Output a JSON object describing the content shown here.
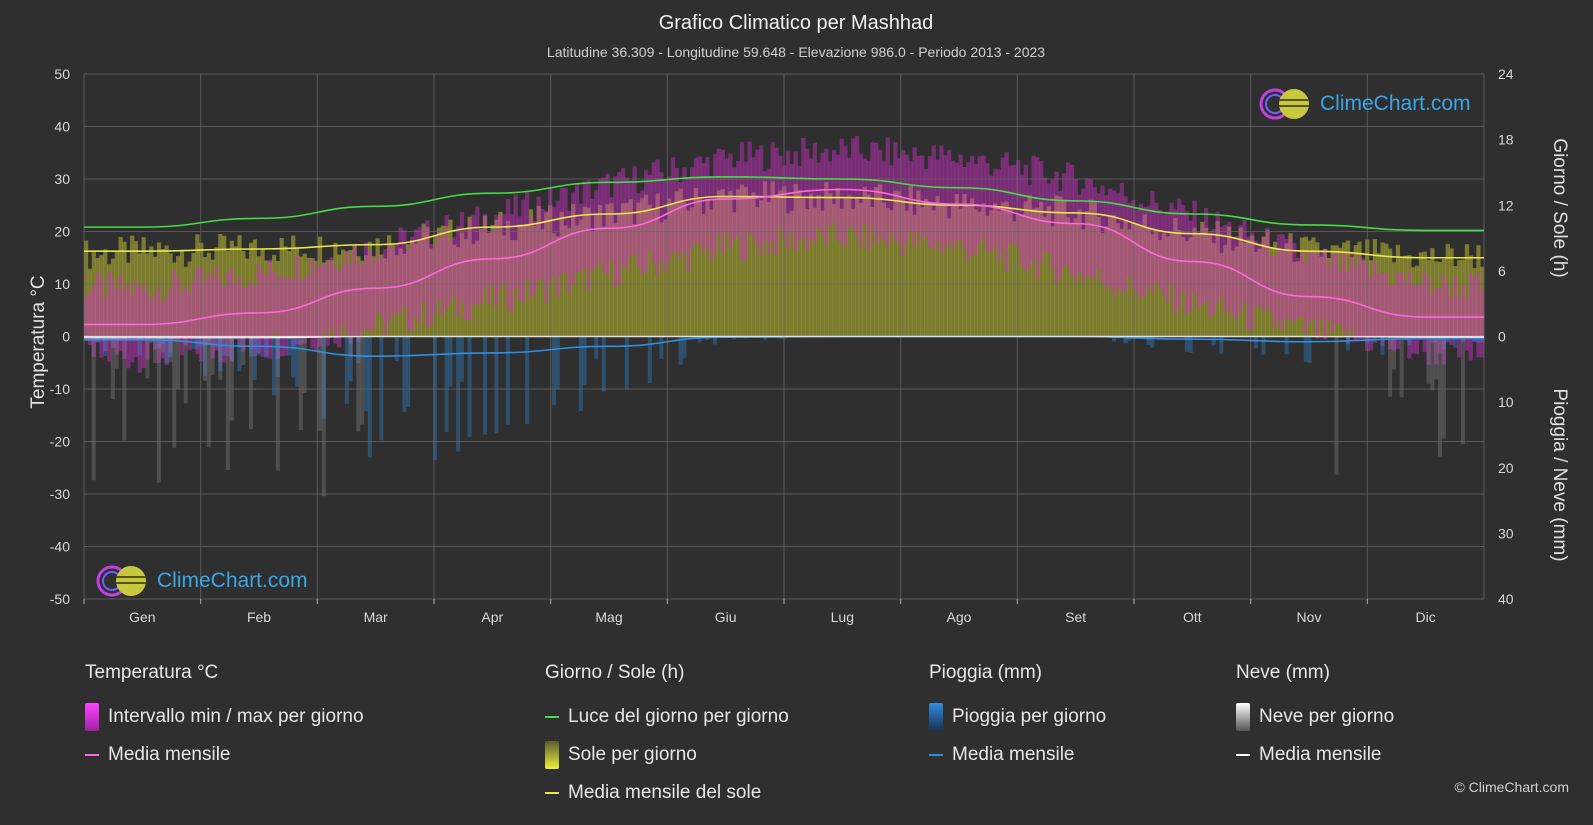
{
  "chart_data": {
    "type": "area",
    "title": "Grafico Climatico per Mashhad",
    "subtitle": "Latitudine 36.309 - Longitudine 59.648 - Elevazione 986.0 - Periodo 2013 - 2023",
    "categories": [
      "Gen",
      "Feb",
      "Mar",
      "Apr",
      "Mag",
      "Giu",
      "Lug",
      "Ago",
      "Set",
      "Ott",
      "Nov",
      "Dic"
    ],
    "y_left": {
      "label": "Temperatura °C",
      "range": [
        -50,
        50
      ],
      "ticks": [
        "50",
        "40",
        "30",
        "20",
        "10",
        "0",
        "-10",
        "-20",
        "-30",
        "-40",
        "-50"
      ]
    },
    "y_right_top": {
      "label": "Giorno / Sole (h)",
      "range": [
        0,
        24
      ],
      "ticks": [
        "24",
        "18",
        "12",
        "6",
        "0"
      ]
    },
    "y_right_bottom": {
      "label": "Pioggia / Neve (mm)",
      "range": [
        0,
        40
      ],
      "ticks": [
        "10",
        "20",
        "30",
        "40"
      ]
    },
    "series": [
      {
        "name": "Media mensile",
        "group": "temperature",
        "unit": "°C",
        "color": "#ff66e0",
        "values": [
          2.3,
          4.5,
          9.2,
          14.8,
          20.6,
          26.2,
          28.0,
          25.2,
          21.5,
          14.3,
          7.6,
          3.7
        ]
      },
      {
        "name": "Intervallo min / max per giorno (max)",
        "group": "temperature",
        "unit": "°C",
        "values": [
          9,
          12,
          17,
          23,
          29,
          34,
          35.5,
          34,
          30,
          23,
          15,
          10
        ]
      },
      {
        "name": "Intervallo min / max per giorno (min)",
        "group": "temperature",
        "unit": "°C",
        "values": [
          -4,
          -2,
          2,
          7,
          12,
          17,
          19,
          17,
          12,
          6,
          1,
          -3
        ]
      },
      {
        "name": "Luce del giorno per giorno",
        "group": "sun",
        "unit": "h",
        "color": "#44dd44",
        "values": [
          10.0,
          10.8,
          11.9,
          13.1,
          14.1,
          14.6,
          14.4,
          13.6,
          12.4,
          11.2,
          10.2,
          9.7
        ]
      },
      {
        "name": "Media mensile del sole",
        "group": "sun",
        "unit": "h",
        "color": "#e8e84a",
        "values": [
          7.8,
          8.0,
          8.4,
          10.0,
          11.2,
          12.8,
          12.7,
          12.0,
          11.3,
          9.4,
          7.8,
          7.2
        ]
      },
      {
        "name": "Pioggia media mensile",
        "group": "rain",
        "unit": "mm",
        "color": "#2f8ee0",
        "values": [
          0.5,
          1.5,
          3.0,
          2.5,
          1.5,
          0.1,
          0.0,
          0.0,
          0.0,
          0.4,
          0.8,
          0.3
        ]
      },
      {
        "name": "Neve media mensile",
        "group": "snow",
        "unit": "mm",
        "color": "#ffffff",
        "values": [
          0.2,
          0.2,
          0.0,
          0.0,
          0.0,
          0.0,
          0.0,
          0.0,
          0.0,
          0.0,
          0.0,
          0.1
        ]
      }
    ],
    "grid": true
  },
  "legend": {
    "temperature": {
      "heading": "Temperatura °C",
      "range": "Intervallo min / max per giorno",
      "mean": "Media mensile"
    },
    "sun": {
      "heading": "Giorno / Sole (h)",
      "daylight": "Luce del giorno per giorno",
      "sun": "Sole per giorno",
      "mean": "Media mensile del sole"
    },
    "rain": {
      "heading": "Pioggia (mm)",
      "daily": "Pioggia per giorno",
      "mean": "Media mensile"
    },
    "snow": {
      "heading": "Neve (mm)",
      "daily": "Neve per giorno",
      "mean": "Media mensile"
    }
  },
  "logo_text": "ClimeChart.com",
  "copyright": "© ClimeChart.com",
  "colors": {
    "background": "#2f2f2f",
    "temp_range": "#d030c8",
    "sun_fill": "#b8b832",
    "daylight": "#44dd44",
    "sun_mean": "#e8e84a",
    "temp_mean": "#ff66e0",
    "rain": "#2f8ee0",
    "snow": "#ffffff"
  }
}
